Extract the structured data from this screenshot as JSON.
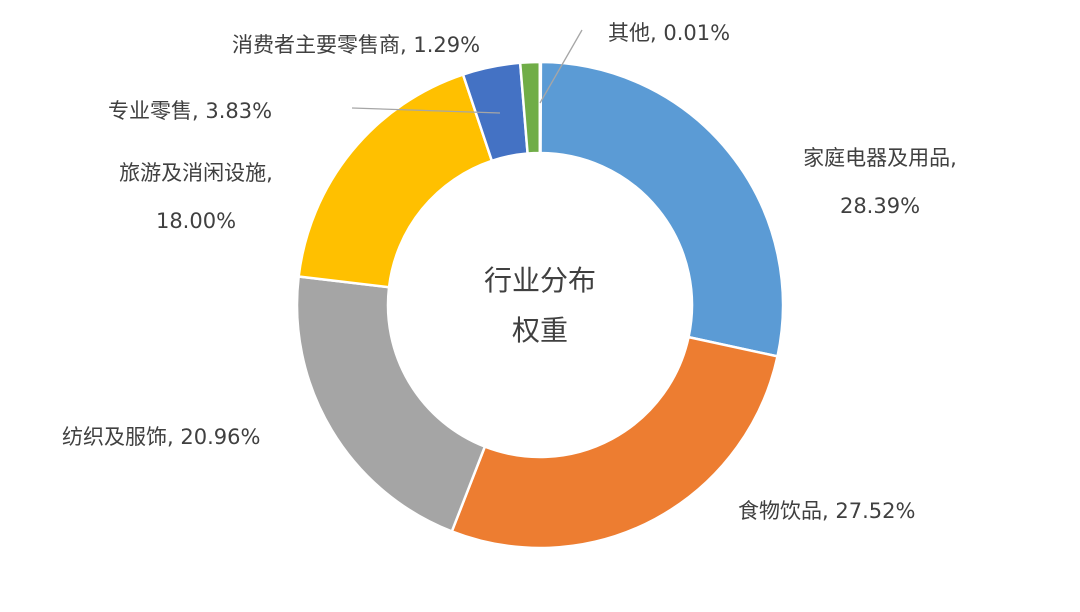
{
  "chart_data": {
    "type": "pie",
    "variant": "donut",
    "center_label_lines": [
      "行业分布",
      "权重"
    ],
    "unit": "%",
    "slices": [
      {
        "name": "家庭电器及用品",
        "value": 28.39,
        "label_lines": [
          "家庭电器及用品,",
          "28.39%"
        ],
        "color": "#5B9BD5"
      },
      {
        "name": "食物饮品",
        "value": 27.52,
        "label_lines": [
          "食物饮品, 27.52%"
        ],
        "color": "#ED7D31"
      },
      {
        "name": "纺织及服饰",
        "value": 20.96,
        "label_lines": [
          "纺织及服饰, 20.96%"
        ],
        "color": "#A5A5A5"
      },
      {
        "name": "旅游及消闲设施",
        "value": 18.0,
        "label_lines": [
          "旅游及消闲设施,",
          "18.00%"
        ],
        "color": "#FFC000"
      },
      {
        "name": "专业零售",
        "value": 3.83,
        "label_lines": [
          "专业零售, 3.83%"
        ],
        "color": "#4472C4"
      },
      {
        "name": "消费者主要零售商",
        "value": 1.29,
        "label_lines": [
          "消费者主要零售商, 1.29%"
        ],
        "color": "#70AD47"
      },
      {
        "name": "其他",
        "value": 0.01,
        "label_lines": [
          "其他, 0.01%"
        ],
        "color": "#264478"
      }
    ],
    "start_angle_deg": 0,
    "direction": "clockwise",
    "legend": "none",
    "data_labels": "outside"
  }
}
